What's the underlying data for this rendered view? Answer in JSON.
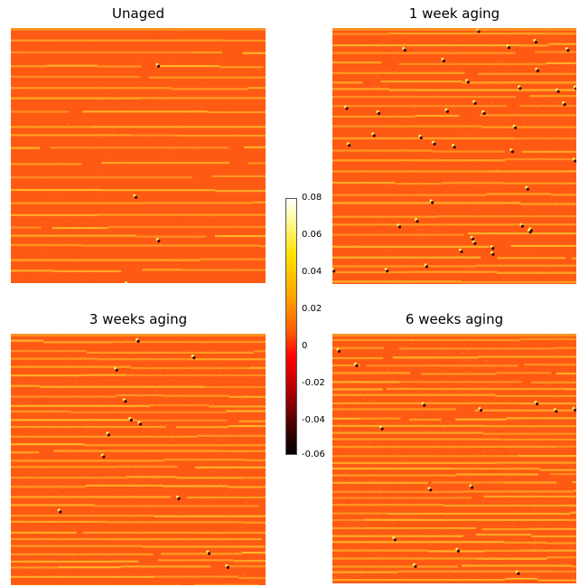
{
  "panels": [
    {
      "title": "Unaged"
    },
    {
      "title": "1 week aging"
    },
    {
      "title": "3 weeks aging"
    },
    {
      "title": "6 weeks aging"
    }
  ],
  "colorbar": {
    "ticks": [
      "0.08",
      "0.06",
      "0.04",
      "0.02",
      "0",
      "-0.02",
      "-0.04",
      "-0.06"
    ],
    "colormap": "hot",
    "range": [
      -0.06,
      0.08
    ]
  },
  "colors": {
    "background_map": "#ff5a14",
    "stripe": "#ffb428",
    "defect_dark": "#3a0000",
    "defect_light": "#ffef70"
  }
}
